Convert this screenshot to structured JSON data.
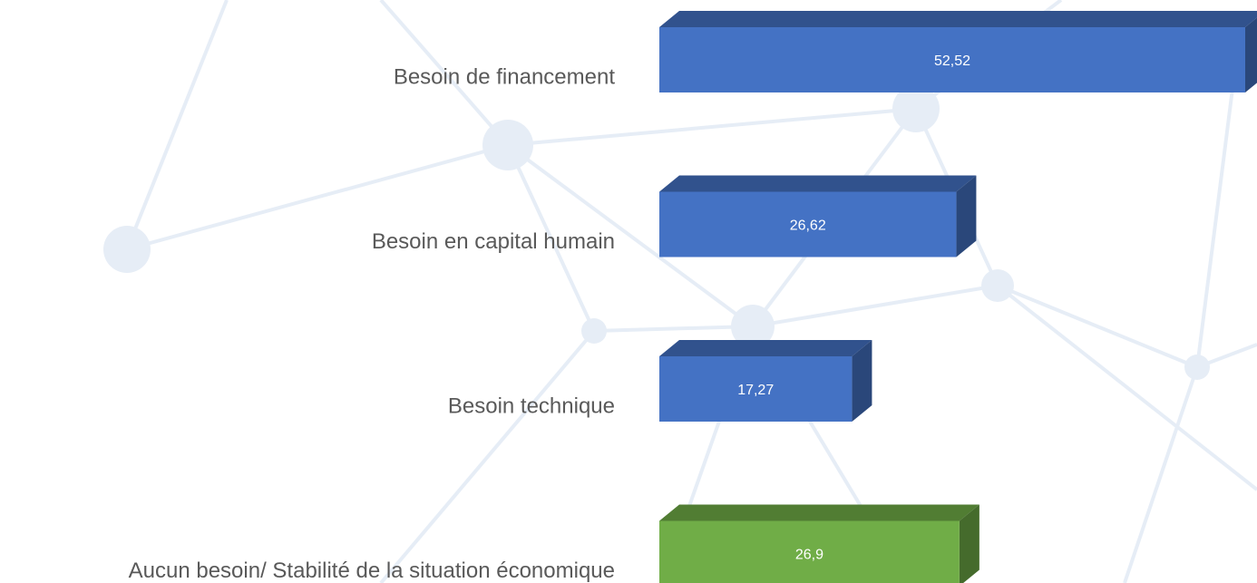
{
  "chart_data": {
    "type": "bar",
    "orientation": "horizontal",
    "categories": [
      "Besoin de financement",
      "Besoin en capital humain",
      "Besoin technique",
      "Aucun besoin/ Stabilité de la situation économique"
    ],
    "values": [
      52.52,
      26.62,
      17.27,
      26.9
    ],
    "value_labels": [
      "52,52",
      "26,62",
      "17,27",
      "26,9"
    ],
    "colors": [
      "#4472c4",
      "#4472c4",
      "#4472c4",
      "#70ad47"
    ]
  }
}
